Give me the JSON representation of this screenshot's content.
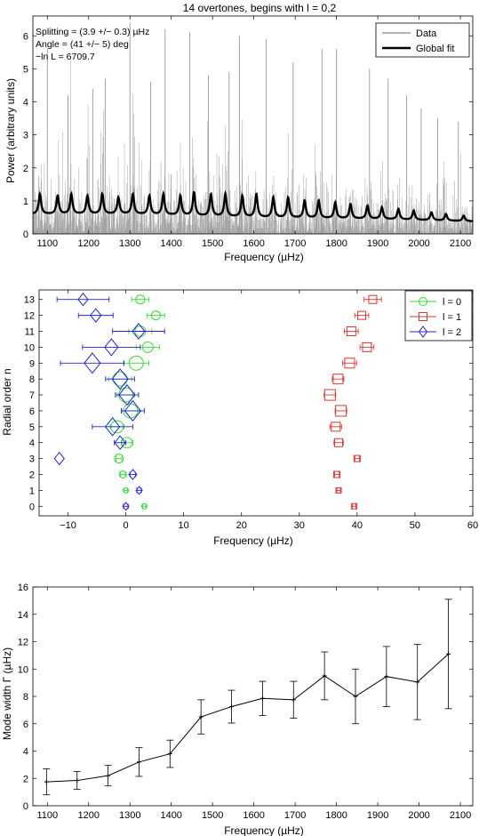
{
  "chart_data": [
    {
      "type": "line",
      "title": "14 overtones, begins with l = 0,2",
      "xlabel": "Frequency (µHz)",
      "ylabel": "Power (arbitrary units)",
      "xlim": [
        1065,
        2130
      ],
      "ylim": [
        0,
        6.6
      ],
      "xticks": [
        1100,
        1200,
        1300,
        1400,
        1500,
        1600,
        1700,
        1800,
        1900,
        2000,
        2100
      ],
      "yticks": [
        0,
        1,
        2,
        3,
        4,
        5,
        6
      ],
      "annotations": [
        "Splitting = (3.9 +/− 0.3) µHz",
        "Angle = (41 +/− 5) deg",
        "−ln L = 6709.7"
      ],
      "legend": {
        "placement": "top-right",
        "entries": [
          "Data",
          "Global fit"
        ]
      },
      "series": [
        {
          "name": "Data",
          "color": "#999999",
          "kind": "noisy power spectrum",
          "peak_envelope": [
            {
              "x": 1100,
              "y": 5.6
            },
            {
              "x": 1150,
              "y": 4.2
            },
            {
              "x": 1210,
              "y": 4.4
            },
            {
              "x": 1240,
              "y": 4.7
            },
            {
              "x": 1300,
              "y": 6.4
            },
            {
              "x": 1350,
              "y": 4.6
            },
            {
              "x": 1385,
              "y": 6.2
            },
            {
              "x": 1445,
              "y": 6.1
            },
            {
              "x": 1490,
              "y": 4.8
            },
            {
              "x": 1540,
              "y": 4.9
            },
            {
              "x": 1565,
              "y": 6.0
            },
            {
              "x": 1630,
              "y": 5.9
            },
            {
              "x": 1695,
              "y": 5.2
            },
            {
              "x": 1765,
              "y": 5.6
            },
            {
              "x": 1800,
              "y": 5.6
            },
            {
              "x": 1880,
              "y": 5.0
            },
            {
              "x": 1925,
              "y": 4.7
            },
            {
              "x": 1970,
              "y": 4.2
            },
            {
              "x": 2005,
              "y": 3.8
            },
            {
              "x": 2045,
              "y": 3.5
            },
            {
              "x": 2095,
              "y": 3.4
            }
          ]
        },
        {
          "name": "Global fit",
          "color": "#000000",
          "baseline": [
            {
              "x": 1065,
              "y": 0.6
            },
            {
              "x": 1300,
              "y": 0.6
            },
            {
              "x": 1600,
              "y": 0.5
            },
            {
              "x": 1900,
              "y": 0.45
            },
            {
              "x": 2130,
              "y": 0.38
            }
          ],
          "peaks": [
            {
              "x": 1082,
              "y": 1.2
            },
            {
              "x": 1125,
              "y": 1.15
            },
            {
              "x": 1158,
              "y": 1.2
            },
            {
              "x": 1197,
              "y": 1.15
            },
            {
              "x": 1233,
              "y": 1.2
            },
            {
              "x": 1272,
              "y": 1.1
            },
            {
              "x": 1307,
              "y": 1.2
            },
            {
              "x": 1347,
              "y": 1.15
            },
            {
              "x": 1381,
              "y": 1.2
            },
            {
              "x": 1422,
              "y": 1.15
            },
            {
              "x": 1455,
              "y": 1.25
            },
            {
              "x": 1496,
              "y": 1.2
            },
            {
              "x": 1531,
              "y": 1.2
            },
            {
              "x": 1572,
              "y": 1.15
            },
            {
              "x": 1606,
              "y": 1.2
            },
            {
              "x": 1647,
              "y": 1.1
            },
            {
              "x": 1683,
              "y": 1.1
            },
            {
              "x": 1723,
              "y": 1.0
            },
            {
              "x": 1757,
              "y": 1.0
            },
            {
              "x": 1797,
              "y": 0.95
            },
            {
              "x": 1834,
              "y": 0.9
            },
            {
              "x": 1875,
              "y": 0.85
            },
            {
              "x": 1910,
              "y": 0.8
            },
            {
              "x": 1950,
              "y": 0.75
            },
            {
              "x": 1987,
              "y": 0.7
            },
            {
              "x": 2030,
              "y": 0.65
            },
            {
              "x": 2065,
              "y": 0.6
            },
            {
              "x": 2108,
              "y": 0.55
            }
          ]
        }
      ]
    },
    {
      "type": "scatter",
      "xlabel": "Frequency (µHz)",
      "ylabel": "Radial order n",
      "xlim": [
        -15,
        60
      ],
      "ylim": [
        -0.6,
        13.6
      ],
      "xticks": [
        -10,
        0,
        10,
        20,
        30,
        40,
        50,
        60
      ],
      "yticks": [
        0,
        1,
        2,
        3,
        4,
        5,
        6,
        7,
        8,
        9,
        10,
        11,
        12,
        13
      ],
      "legend": {
        "placement": "top-right",
        "entries": [
          "l = 0",
          "l = 1",
          "l = 2"
        ]
      },
      "series": [
        {
          "name": "l = 0",
          "color": "#33dd33",
          "marker": "circle",
          "points": [
            {
              "n": 0,
              "x": 3.2,
              "err": 0.3,
              "size": 3
            },
            {
              "n": 1,
              "x": 0.0,
              "err": 0.3,
              "size": 3
            },
            {
              "n": 2,
              "x": -0.5,
              "err": 0.4,
              "size": 4
            },
            {
              "n": 3,
              "x": -1.2,
              "err": 0.5,
              "size": 5
            },
            {
              "n": 4,
              "x": 0.2,
              "err": 1.0,
              "size": 6
            },
            {
              "n": 5,
              "x": -1.5,
              "err": 1.2,
              "size": 7
            },
            {
              "n": 6,
              "x": 0.8,
              "err": 1.5,
              "size": 8
            },
            {
              "n": 7,
              "x": 0.0,
              "err": 1.5,
              "size": 8
            },
            {
              "n": 8,
              "x": -1.0,
              "err": 2.0,
              "size": 8
            },
            {
              "n": 9,
              "x": 1.8,
              "err": 2.2,
              "size": 8
            },
            {
              "n": 10,
              "x": 3.8,
              "err": 2.0,
              "size": 6
            },
            {
              "n": 11,
              "x": 2.5,
              "err": 2.0,
              "size": 6
            },
            {
              "n": 12,
              "x": 5.2,
              "err": 1.5,
              "size": 5
            },
            {
              "n": 13,
              "x": 2.5,
              "err": 1.5,
              "size": 5
            }
          ]
        },
        {
          "name": "l = 1",
          "color": "#dd3333",
          "marker": "square",
          "points": [
            {
              "n": 0,
              "x": 39.5,
              "err": 0.3,
              "size": 3
            },
            {
              "n": 1,
              "x": 36.8,
              "err": 0.3,
              "size": 3
            },
            {
              "n": 2,
              "x": 36.5,
              "err": 0.4,
              "size": 3.5
            },
            {
              "n": 3,
              "x": 40.0,
              "err": 0.4,
              "size": 3.5
            },
            {
              "n": 4,
              "x": 36.8,
              "err": 0.8,
              "size": 4.5
            },
            {
              "n": 5,
              "x": 36.3,
              "err": 1.0,
              "size": 5
            },
            {
              "n": 6,
              "x": 37.2,
              "err": 1.0,
              "size": 6
            },
            {
              "n": 7,
              "x": 35.3,
              "err": 1.0,
              "size": 6
            },
            {
              "n": 8,
              "x": 36.7,
              "err": 1.0,
              "size": 5.5
            },
            {
              "n": 9,
              "x": 38.7,
              "err": 1.2,
              "size": 5.5
            },
            {
              "n": 10,
              "x": 41.7,
              "err": 1.2,
              "size": 5
            },
            {
              "n": 11,
              "x": 39.0,
              "err": 1.2,
              "size": 5
            },
            {
              "n": 12,
              "x": 40.8,
              "err": 1.2,
              "size": 4.5
            },
            {
              "n": 13,
              "x": 42.7,
              "err": 1.5,
              "size": 4.5
            }
          ]
        },
        {
          "name": "l = 2",
          "color": "#2222dd",
          "marker": "diamond",
          "points": [
            {
              "n": 0,
              "x": 0.0,
              "err": 0.4,
              "size": 3.5
            },
            {
              "n": 1,
              "x": 2.3,
              "err": 0.4,
              "size": 3.5
            },
            {
              "n": 2,
              "x": 1.2,
              "err": 0.5,
              "size": 4.5
            },
            {
              "n": 3,
              "x": -11.5,
              "err": 0.0,
              "size": 5.5
            },
            {
              "n": 4,
              "x": -1.0,
              "err": 1.0,
              "size": 6
            },
            {
              "n": 5,
              "x": -2.3,
              "err": 3.5,
              "size": 8
            },
            {
              "n": 6,
              "x": 1.2,
              "err": 2.0,
              "size": 9
            },
            {
              "n": 7,
              "x": 0.2,
              "err": 2.0,
              "size": 9
            },
            {
              "n": 8,
              "x": -1.0,
              "err": 2.5,
              "size": 9
            },
            {
              "n": 9,
              "x": -5.8,
              "err": 5.5,
              "size": 9
            },
            {
              "n": 10,
              "x": -2.5,
              "err": 5.0,
              "size": 7.5
            },
            {
              "n": 11,
              "x": 2.2,
              "err": 4.5,
              "size": 7
            },
            {
              "n": 12,
              "x": -5.2,
              "err": 3.0,
              "size": 6
            },
            {
              "n": 13,
              "x": -7.4,
              "err": 4.5,
              "size": 5.5
            }
          ]
        }
      ]
    },
    {
      "type": "line",
      "xlabel": "Frequency (µHz)",
      "ylabel": "Mode width Γ (µHz)",
      "xlim": [
        1065,
        2130
      ],
      "ylim": [
        0,
        16
      ],
      "xticks": [
        1100,
        1200,
        1300,
        1400,
        1500,
        1600,
        1700,
        1800,
        1900,
        2000,
        2100
      ],
      "yticks": [
        0,
        2,
        4,
        6,
        8,
        10,
        12,
        14,
        16
      ],
      "series": [
        {
          "color": "#000000",
          "points": [
            {
              "x": 1098,
              "y": 1.75,
              "err": 0.95
            },
            {
              "x": 1172,
              "y": 1.85,
              "err": 0.65
            },
            {
              "x": 1247,
              "y": 2.2,
              "err": 0.75
            },
            {
              "x": 1322,
              "y": 3.2,
              "err": 1.05
            },
            {
              "x": 1397,
              "y": 3.8,
              "err": 1.0
            },
            {
              "x": 1472,
              "y": 6.5,
              "err": 1.25
            },
            {
              "x": 1546,
              "y": 7.25,
              "err": 1.2
            },
            {
              "x": 1621,
              "y": 7.85,
              "err": 1.25
            },
            {
              "x": 1696,
              "y": 7.75,
              "err": 1.35
            },
            {
              "x": 1771,
              "y": 9.5,
              "err": 1.75
            },
            {
              "x": 1846,
              "y": 8.0,
              "err": 2.0
            },
            {
              "x": 1921,
              "y": 9.45,
              "err": 2.2
            },
            {
              "x": 1996,
              "y": 9.05,
              "err": 2.75
            },
            {
              "x": 2071,
              "y": 11.1,
              "err": 4.0
            }
          ]
        }
      ]
    }
  ]
}
